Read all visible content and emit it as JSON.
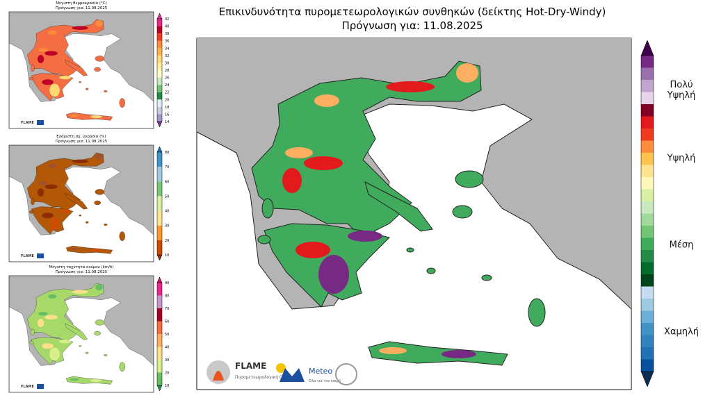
{
  "main": {
    "title": "Επικινδυνότητα πυρομετεωρολογικών συνθηκών (δείκτης Hot-Dry-Windy)",
    "subtitle": "Πρόγνωση για: 11.08.2025",
    "colorbar": {
      "colors": [
        "#0b2d4f",
        "#08519c",
        "#2171b5",
        "#3182bd",
        "#4292c6",
        "#6baed6",
        "#9ecae1",
        "#c6dbef",
        "#00441b",
        "#006d2c",
        "#238b45",
        "#41ab5d",
        "#74c476",
        "#a1d99b",
        "#c7e9c0",
        "#d9f0a3",
        "#fff7bc",
        "#fee391",
        "#fec44f",
        "#fd8d3c",
        "#f03b20",
        "#e31a1c",
        "#800026",
        "#e7d4e8",
        "#c2a5cf",
        "#9970ab",
        "#762a83",
        "#40004b"
      ],
      "labels": [
        "Πολύ Υψηλή",
        "Υψηλή",
        "Μέση",
        "Χαμηλή"
      ]
    }
  },
  "panels": [
    {
      "title": "Μέγιστη θερμοκρασία (°C)",
      "subtitle": "Πρόγνωση για: 11.08.2025",
      "ticks": [
        14,
        16,
        18,
        20,
        22,
        24,
        26,
        28,
        30,
        32,
        34,
        36,
        38,
        40,
        42
      ],
      "colors": [
        "#7b3294",
        "#9e9ac8",
        "#cbc9e2",
        "#e0ecf4",
        "#238b45",
        "#74c476",
        "#c7e9c0",
        "#ffffcc",
        "#ffeda0",
        "#fed976",
        "#feb24c",
        "#fd8d3c",
        "#f03b20",
        "#bd0026",
        "#e7298a",
        "#dd3497"
      ]
    },
    {
      "title": "Ελάχιστη σχ. υγρασία (%)",
      "subtitle": "Πρόγνωση για: 11.08.2025",
      "ticks": [
        10,
        20,
        30,
        40,
        50,
        60,
        70,
        80
      ],
      "colors": [
        "#8c2d04",
        "#cc4c02",
        "#fe9929",
        "#fee391",
        "#d9f0a3",
        "#78c679",
        "#9ecae1",
        "#4292c6",
        "#2171b5"
      ]
    },
    {
      "title": "Μέγιστη ταχύτητα ανέμου (km/h)",
      "subtitle": "Πρόγνωση για: 11.08.2025",
      "ticks": [
        10,
        20,
        30,
        40,
        50,
        60,
        70,
        80,
        90
      ],
      "colors": [
        "#1a9850",
        "#66bd63",
        "#d9ef8b",
        "#fee08b",
        "#fdae61",
        "#f46d43",
        "#a50026",
        "#c994c7",
        "#e7298a",
        "#ce1256"
      ]
    }
  ],
  "logos": {
    "flame": "FLAME",
    "flame_caption": "Πυρομετεωρολογική Ομάδα",
    "meteo": "Meteo",
    "meteo_caption": "Όλα για τον καιρό"
  }
}
